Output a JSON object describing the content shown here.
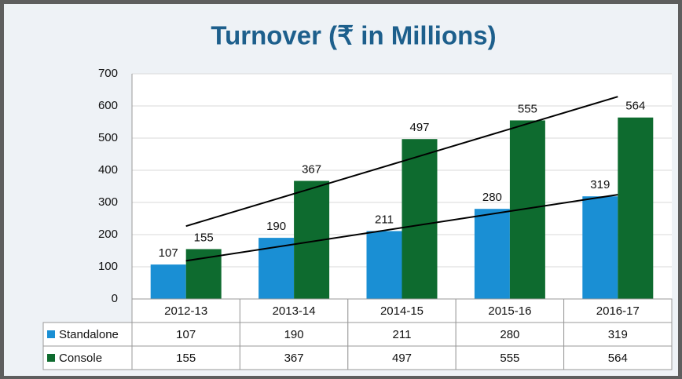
{
  "chart_data": {
    "type": "bar",
    "title": "Turnover (₹ in Millions)",
    "categories": [
      "2012-13",
      "2013-14",
      "2014-15",
      "2015-16",
      "2016-17"
    ],
    "series": [
      {
        "name": "Standalone",
        "color": "#1a8fd4",
        "values": [
          107,
          190,
          211,
          280,
          319
        ]
      },
      {
        "name": "Console",
        "color": "#0e6b2f",
        "values": [
          155,
          367,
          497,
          555,
          564
        ]
      }
    ],
    "ylim": [
      0,
      700
    ],
    "yticks": [
      0,
      100,
      200,
      300,
      400,
      500,
      600,
      700
    ],
    "grid": true,
    "trendline": true
  }
}
